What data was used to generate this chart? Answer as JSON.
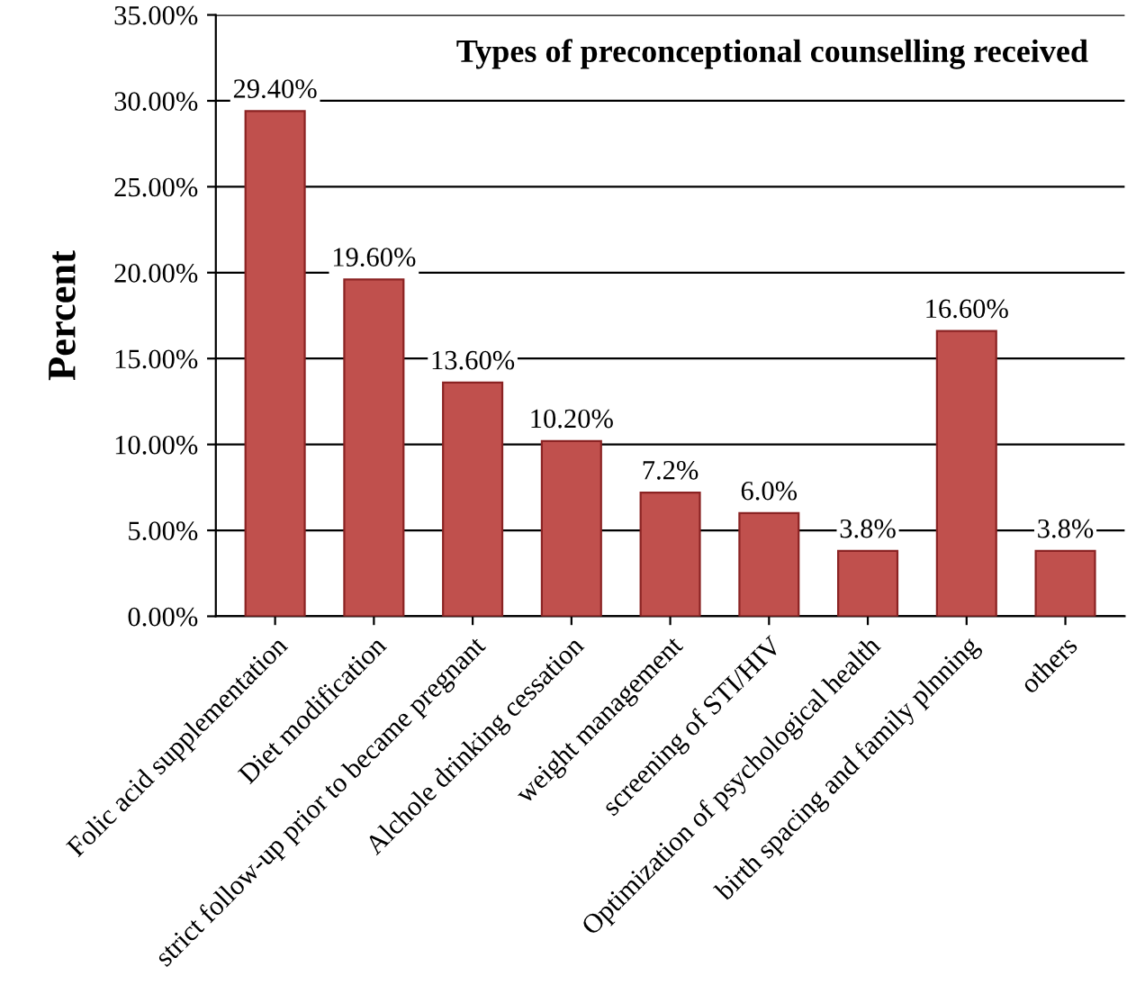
{
  "chart_data": {
    "type": "bar",
    "title": "Types of preconceptional counselling received",
    "ylabel": "Percent",
    "categories": [
      "Folic acid supplementation",
      "Diet modification",
      "strict follow-up prior to became pregnant",
      "Alchole drinking cessation",
      "weight management",
      "screening of STI/HIV",
      "Optimization of psychological health",
      "birth spacing and family plnning",
      "others"
    ],
    "values": [
      29.4,
      19.6,
      13.6,
      10.2,
      7.2,
      6.0,
      3.8,
      16.6,
      3.8
    ],
    "value_labels": [
      "29.40%",
      "19.60%",
      "13.60%",
      "10.20%",
      "7.2%",
      "6.0%",
      "3.8%",
      "16.60%",
      "3.8%"
    ],
    "color": "#c0504d",
    "ylim": [
      0,
      35
    ],
    "yticks": [
      {
        "value": 0,
        "label": "0.00%"
      },
      {
        "value": 5,
        "label": "5.00%"
      },
      {
        "value": 10,
        "label": "10.00%"
      },
      {
        "value": 15,
        "label": "15.00%"
      },
      {
        "value": 20,
        "label": "20.00%"
      },
      {
        "value": 25,
        "label": "25.00%"
      },
      {
        "value": 30,
        "label": "30.00%"
      },
      {
        "value": 35,
        "label": "35.00%"
      }
    ],
    "grid": "y",
    "legend": false
  }
}
